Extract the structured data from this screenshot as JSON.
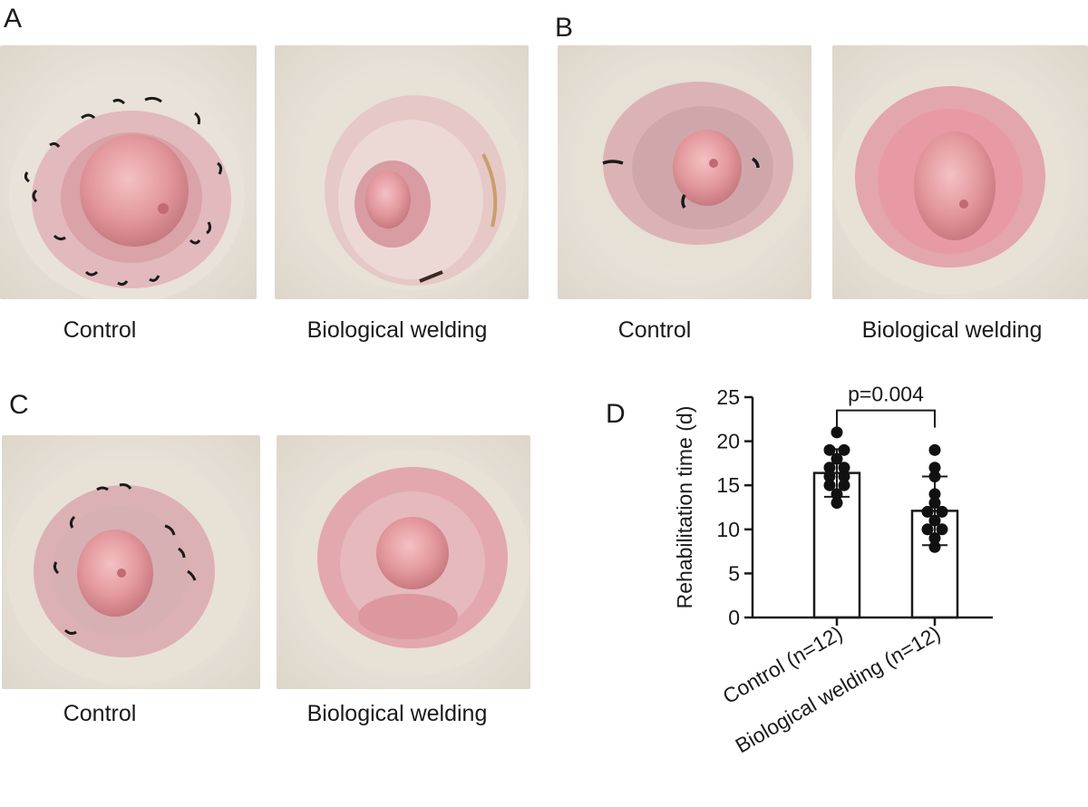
{
  "panels": {
    "A": {
      "letter": "A",
      "left_caption": "Control",
      "right_caption": "Biological welding"
    },
    "B": {
      "letter": "B",
      "left_caption": "Control",
      "right_caption": "Biological welding"
    },
    "C": {
      "letter": "C",
      "left_caption": "Control",
      "right_caption": "Biological welding"
    },
    "D": {
      "letter": "D"
    }
  },
  "colors": {
    "tissue": "#e7a7ad",
    "skin": "#efe9df",
    "suture": "#1b1b1b",
    "background": "#f2efe9"
  },
  "chart_data": {
    "type": "bar",
    "ylabel": "Rehabilitation time (d)",
    "ylim": [
      0,
      25
    ],
    "yticks": [
      0,
      5,
      10,
      15,
      20,
      25
    ],
    "categories": [
      "Control (n=12)",
      "Biological welding (n=12)"
    ],
    "values": [
      16.4,
      12.1
    ],
    "error_sd": [
      2.7,
      3.9
    ],
    "points": [
      [
        21,
        19,
        19,
        18,
        17,
        17,
        16,
        16,
        15,
        15,
        14,
        13
      ],
      [
        19,
        17,
        16,
        14,
        13,
        12,
        12,
        11,
        10,
        10,
        9,
        8
      ]
    ],
    "annotation": "p=0.004"
  }
}
